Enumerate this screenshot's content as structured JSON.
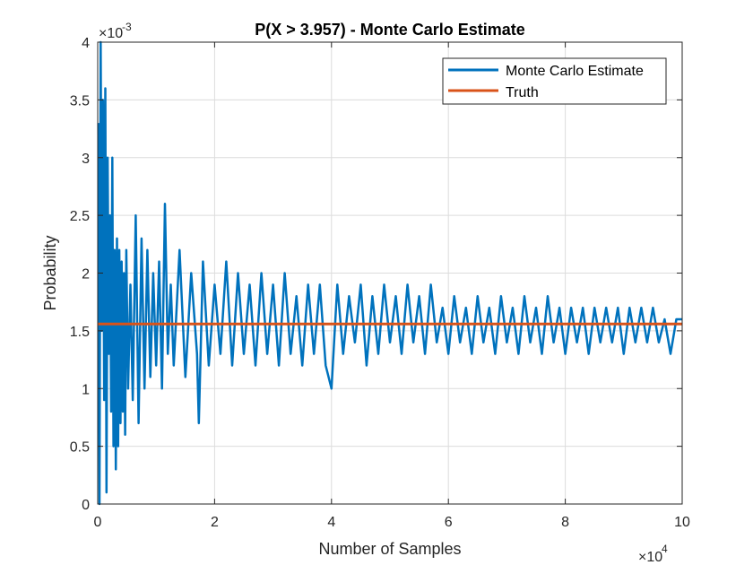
{
  "chart_data": {
    "type": "line",
    "title": "P(X > 3.957) - Monte Carlo Estimate",
    "xlabel": "Number of Samples",
    "ylabel": "Probability",
    "x_exponent": "×10",
    "x_exponent_power": "4",
    "y_exponent": "×10",
    "y_exponent_power": "-3",
    "xlim": [
      0,
      100000
    ],
    "ylim": [
      0,
      0.004
    ],
    "x_ticks": [
      0,
      20000,
      40000,
      60000,
      80000,
      100000
    ],
    "x_tick_labels": [
      "0",
      "2",
      "4",
      "6",
      "8",
      "10"
    ],
    "y_ticks": [
      0,
      0.0005,
      0.001,
      0.0015,
      0.002,
      0.0025,
      0.003,
      0.0035,
      0.004
    ],
    "y_tick_labels": [
      "0",
      "0.5",
      "1",
      "1.5",
      "2",
      "2.5",
      "3",
      "3.5",
      "4"
    ],
    "grid": true,
    "legend_position": "top-right",
    "series": [
      {
        "name": "Monte Carlo Estimate",
        "color": "#0072BD",
        "x": [
          100,
          300,
          500,
          700,
          900,
          1100,
          1300,
          1500,
          1700,
          1900,
          2100,
          2300,
          2500,
          2700,
          2900,
          3100,
          3300,
          3500,
          3700,
          3900,
          4100,
          4300,
          4500,
          4700,
          4900,
          5200,
          5600,
          6000,
          6500,
          7000,
          7500,
          8000,
          8500,
          9000,
          9500,
          10000,
          10500,
          11000,
          11500,
          12000,
          12500,
          13000,
          14000,
          15000,
          16000,
          17000,
          17300,
          18000,
          19000,
          20000,
          21000,
          22000,
          23000,
          24000,
          25000,
          26000,
          27000,
          28000,
          29000,
          30000,
          31000,
          32000,
          33000,
          34000,
          35000,
          36000,
          37000,
          38000,
          39000,
          40000,
          41000,
          42000,
          43000,
          44000,
          45000,
          46000,
          47000,
          48000,
          49000,
          50000,
          51000,
          52000,
          53000,
          54000,
          55000,
          56000,
          57000,
          58000,
          59000,
          60000,
          61000,
          62000,
          63000,
          64000,
          65000,
          66000,
          67000,
          68000,
          69000,
          70000,
          71000,
          72000,
          73000,
          74000,
          75000,
          76000,
          77000,
          78000,
          79000,
          80000,
          81000,
          82000,
          83000,
          84000,
          85000,
          86000,
          87000,
          88000,
          89000,
          90000,
          91000,
          92000,
          93000,
          94000,
          95000,
          96000,
          97000,
          98000,
          99000,
          100000
        ],
        "y": [
          0.0033,
          0,
          0.004,
          0.0015,
          0.0035,
          0.0009,
          0.0036,
          0.0001,
          0.003,
          0.0013,
          0.0025,
          0.0008,
          0.003,
          0.0005,
          0.0022,
          0.0003,
          0.0023,
          0.0005,
          0.0022,
          0.0007,
          0.0021,
          0.0008,
          0.002,
          0.0006,
          0.0022,
          0.001,
          0.0019,
          0.0009,
          0.0025,
          0.0007,
          0.0023,
          0.001,
          0.0022,
          0.0011,
          0.002,
          0.0012,
          0.0021,
          0.001,
          0.0026,
          0.0013,
          0.0019,
          0.0012,
          0.0022,
          0.0011,
          0.002,
          0.0013,
          0.0007,
          0.0021,
          0.0012,
          0.0019,
          0.0013,
          0.0021,
          0.0012,
          0.002,
          0.0013,
          0.0019,
          0.0012,
          0.002,
          0.0013,
          0.0019,
          0.0012,
          0.002,
          0.0013,
          0.0018,
          0.0012,
          0.0019,
          0.0013,
          0.0019,
          0.0012,
          0.001,
          0.0019,
          0.0013,
          0.0018,
          0.0014,
          0.0019,
          0.0012,
          0.0018,
          0.0013,
          0.0019,
          0.0014,
          0.0018,
          0.0013,
          0.0019,
          0.0014,
          0.0018,
          0.0013,
          0.0019,
          0.0014,
          0.0017,
          0.0013,
          0.0018,
          0.0014,
          0.0017,
          0.0013,
          0.0018,
          0.0014,
          0.0017,
          0.0013,
          0.0018,
          0.0014,
          0.0017,
          0.0013,
          0.0018,
          0.0014,
          0.0017,
          0.0013,
          0.0018,
          0.0014,
          0.0017,
          0.0013,
          0.0017,
          0.0014,
          0.0017,
          0.0013,
          0.0017,
          0.0014,
          0.0017,
          0.0014,
          0.0017,
          0.0013,
          0.0017,
          0.0014,
          0.0017,
          0.0014,
          0.0017,
          0.0014,
          0.0016,
          0.0013,
          0.0016,
          0.0016
        ]
      },
      {
        "name": "Truth",
        "color": "#D95319",
        "x": [
          0,
          100000
        ],
        "y": [
          0.00156,
          0.00156
        ]
      }
    ]
  }
}
